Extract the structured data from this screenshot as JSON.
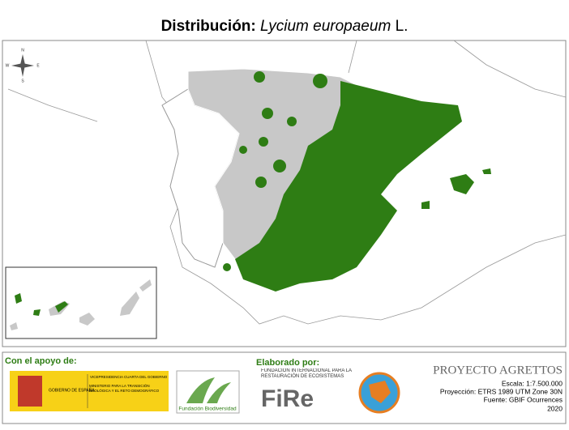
{
  "title": {
    "prefix": "Distribución:",
    "species": "Lycium europaeum",
    "author": "L."
  },
  "compass": {
    "n": "N",
    "s": "S",
    "e": "E",
    "w": "W"
  },
  "footer": {
    "support_label": "Con el apoyo de:",
    "gov": {
      "name": "GOBIERNO DE ESPAÑA",
      "vice": "VICEPRESIDENCIA CUARTA DEL GOBIERNO",
      "ministry": "MINISTERIO PARA LA TRANSICIÓN ECOLÓGICA Y EL RETO DEMOGRÁFICO"
    },
    "foundation": "Fundación Biodiversidad",
    "made_by_label": "Elaborado por:",
    "fire": {
      "full": "FUNDACIÓN INTERNACIONAL PARA LA RESTAURACIÓN DE ECOSISTEMAS",
      "short": "FiRe"
    },
    "project": "PROYECTO AGRETTOS",
    "scale": "Escala: 1:7.500.000",
    "projection": "Proyección: ETRS 1989 UTM Zone 30N",
    "source": "Fuente: GBIF Ocurrences",
    "year": "2020"
  }
}
